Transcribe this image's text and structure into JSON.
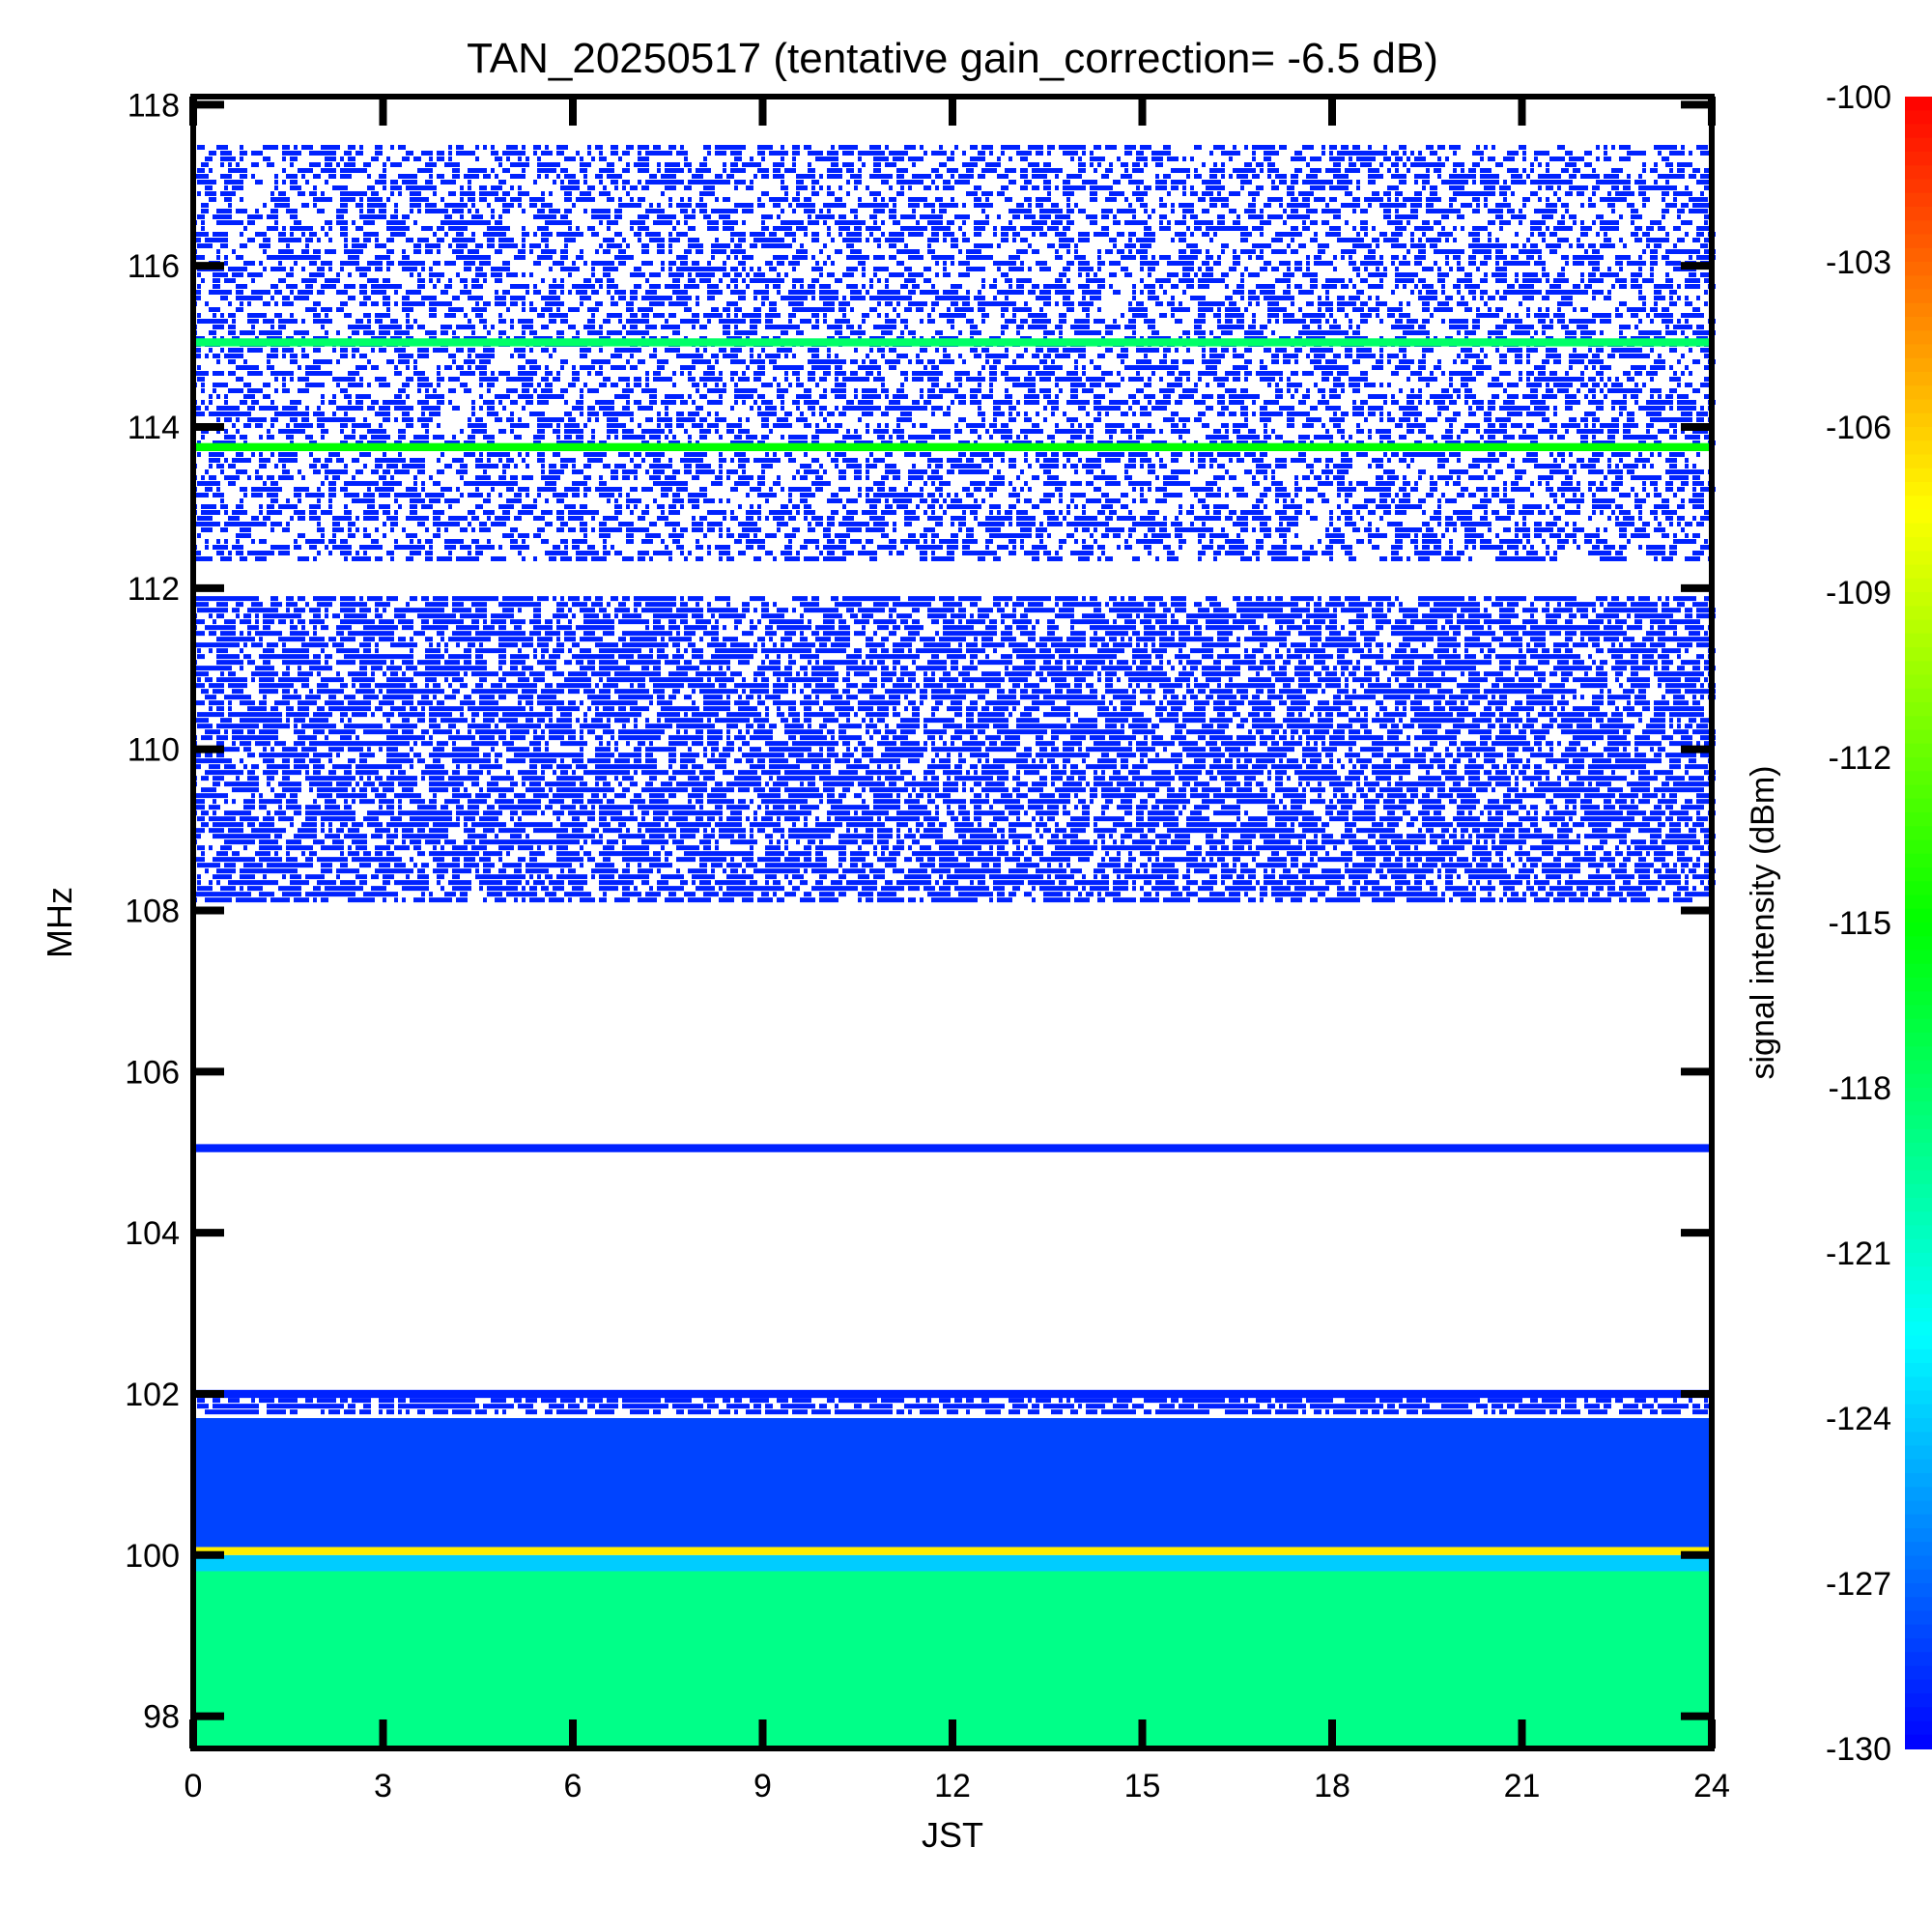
{
  "chart_data": {
    "type": "heatmap",
    "title": "TAN_20250517 (tentative gain_correction= -6.5 dB)",
    "xlabel": "JST",
    "ylabel": "MHz",
    "colorbar_label": "signal intensity (dBm)",
    "xlim": [
      0,
      24
    ],
    "ylim": [
      97.6,
      118.1
    ],
    "x_ticks": [
      0,
      3,
      6,
      9,
      12,
      15,
      18,
      21,
      24
    ],
    "x_tick_labels": [
      "0",
      "3",
      "6",
      "9",
      "12",
      "15",
      "18",
      "21",
      "24"
    ],
    "y_ticks": [
      98,
      100,
      102,
      104,
      106,
      108,
      110,
      112,
      114,
      116,
      118
    ],
    "y_tick_labels": [
      "98",
      "100",
      "102",
      "104",
      "106",
      "108",
      "110",
      "112",
      "114",
      "116",
      "118"
    ],
    "colorbar_range": [
      -130,
      -100
    ],
    "colorbar_ticks": [
      -100,
      -103,
      -106,
      -109,
      -112,
      -115,
      -118,
      -121,
      -124,
      -127,
      -130
    ],
    "colorbar_tick_labels": [
      "-100",
      "-103",
      "-106",
      "-109",
      "-112",
      "-115",
      "-118",
      "-121",
      "-124",
      "-127",
      "-130"
    ],
    "colormap": [
      "#0000ff",
      "#00ffff",
      "#00ff00",
      "#ffff00",
      "#ff0000"
    ],
    "bands": [
      {
        "f_min": 97.6,
        "f_max": 99.8,
        "level_dbm": -119,
        "density": 1.0
      },
      {
        "f_min": 99.8,
        "f_max": 100.0,
        "level_dbm": -124,
        "density": 1.0
      },
      {
        "f_min": 100.0,
        "f_max": 100.1,
        "level_dbm": -107,
        "density": 1.0
      },
      {
        "f_min": 100.1,
        "f_max": 101.7,
        "level_dbm": -128,
        "density": 1.0
      },
      {
        "f_min": 101.7,
        "f_max": 101.95,
        "level_dbm": -129,
        "density": 0.6
      },
      {
        "f_min": 101.95,
        "f_max": 102.05,
        "level_dbm": -129,
        "density": 0.95
      },
      {
        "f_min": 105.0,
        "f_max": 105.1,
        "level_dbm": -129,
        "density": 0.95
      },
      {
        "f_min": 108.1,
        "f_max": 111.9,
        "level_dbm": -129,
        "density": 0.55
      },
      {
        "f_min": 112.3,
        "f_max": 117.5,
        "level_dbm": -129,
        "density": 0.35
      },
      {
        "f_min": 113.7,
        "f_max": 113.8,
        "level_dbm": -115,
        "density": 1.0
      },
      {
        "f_min": 115.0,
        "f_max": 115.1,
        "level_dbm": -118,
        "density": 1.0
      }
    ]
  }
}
